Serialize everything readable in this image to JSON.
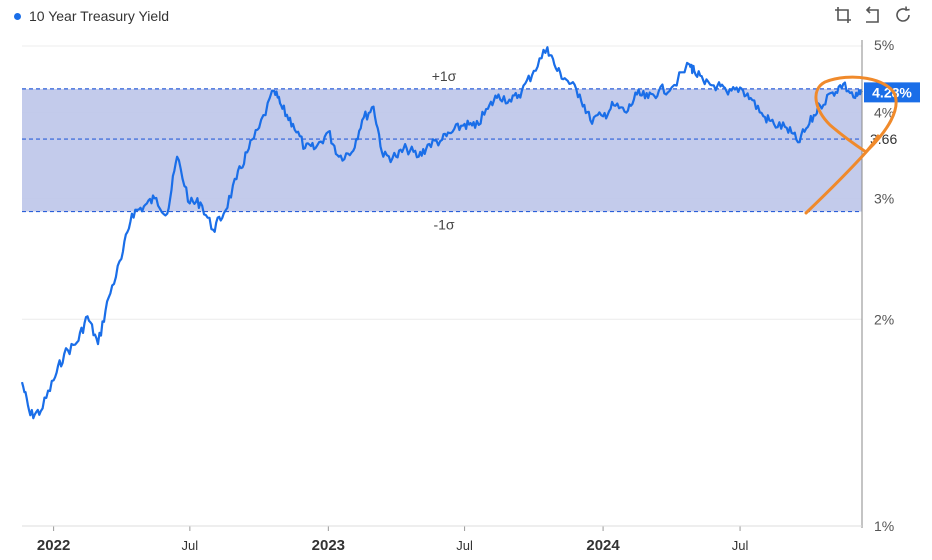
{
  "legend": {
    "label": "10 Year Treasury Yield",
    "color": "#1a6ee8"
  },
  "toolbar": {
    "icons": [
      "crop-icon",
      "undo-icon",
      "refresh-icon"
    ]
  },
  "chart_data": {
    "type": "line",
    "title": "",
    "y_scale": "log",
    "ylim": [
      1,
      5
    ],
    "y_ticks": [
      {
        "value": 5,
        "label": "5%"
      },
      {
        "value": 4,
        "label": "4%"
      },
      {
        "value": 3,
        "label": "3%"
      },
      {
        "value": 2,
        "label": "2%"
      },
      {
        "value": 1,
        "label": "1%"
      }
    ],
    "xlim": [
      "2021-11-20",
      "2024-12-10"
    ],
    "x_ticks": [
      {
        "date": "2022-01-01",
        "label": "2022",
        "bold": true
      },
      {
        "date": "2022-07-01",
        "label": "Jul",
        "bold": false
      },
      {
        "date": "2023-01-01",
        "label": "2023",
        "bold": true
      },
      {
        "date": "2023-07-01",
        "label": "Jul",
        "bold": false
      },
      {
        "date": "2024-01-01",
        "label": "2024",
        "bold": true
      },
      {
        "date": "2024-07-01",
        "label": "Jul",
        "bold": false
      }
    ],
    "band": {
      "upper": 4.33,
      "lower": 2.87,
      "upper_label": "+1σ",
      "lower_label": "-1σ",
      "color": "#c0c8ea"
    },
    "reference_line": {
      "value": 3.66,
      "label": "3.66"
    },
    "last_value_label": "4.28%",
    "annotation_color": "#f08a2b",
    "grid": true,
    "series": [
      {
        "color": "#1a6ee8",
        "x": [
          "2021-11-20",
          "2021-12-01",
          "2021-12-15",
          "2022-01-01",
          "2022-01-15",
          "2022-02-01",
          "2022-02-15",
          "2022-03-01",
          "2022-03-15",
          "2022-04-01",
          "2022-04-15",
          "2022-05-01",
          "2022-05-15",
          "2022-06-01",
          "2022-06-14",
          "2022-07-01",
          "2022-07-15",
          "2022-08-01",
          "2022-08-15",
          "2022-09-01",
          "2022-09-15",
          "2022-10-01",
          "2022-10-21",
          "2022-11-01",
          "2022-11-15",
          "2022-12-01",
          "2022-12-15",
          "2023-01-01",
          "2023-01-15",
          "2023-02-01",
          "2023-02-15",
          "2023-03-02",
          "2023-03-15",
          "2023-04-01",
          "2023-04-15",
          "2023-05-01",
          "2023-05-15",
          "2023-06-01",
          "2023-06-15",
          "2023-07-01",
          "2023-07-15",
          "2023-08-01",
          "2023-08-15",
          "2023-09-01",
          "2023-09-15",
          "2023-10-01",
          "2023-10-19",
          "2023-11-01",
          "2023-11-15",
          "2023-12-01",
          "2023-12-15",
          "2024-01-01",
          "2024-01-15",
          "2024-02-01",
          "2024-02-15",
          "2024-03-01",
          "2024-03-15",
          "2024-04-01",
          "2024-04-25",
          "2024-05-01",
          "2024-05-15",
          "2024-06-01",
          "2024-06-15",
          "2024-07-01",
          "2024-07-15",
          "2024-08-01",
          "2024-08-15",
          "2024-09-01",
          "2024-09-16",
          "2024-10-01",
          "2024-10-15",
          "2024-11-01",
          "2024-11-15",
          "2024-12-01",
          "2024-12-10"
        ],
        "values": [
          1.62,
          1.45,
          1.47,
          1.63,
          1.78,
          1.85,
          2.02,
          1.84,
          2.15,
          2.45,
          2.85,
          2.92,
          3.0,
          2.85,
          3.45,
          2.95,
          2.96,
          2.7,
          2.85,
          3.2,
          3.5,
          3.8,
          4.3,
          4.05,
          3.85,
          3.55,
          3.55,
          3.75,
          3.45,
          3.5,
          3.9,
          4.08,
          3.45,
          3.45,
          3.55,
          3.45,
          3.6,
          3.65,
          3.75,
          3.85,
          3.8,
          4.05,
          4.25,
          4.15,
          4.3,
          4.6,
          4.98,
          4.6,
          4.45,
          4.25,
          3.9,
          3.95,
          4.1,
          4.0,
          4.25,
          4.2,
          4.3,
          4.35,
          4.7,
          4.6,
          4.4,
          4.38,
          4.25,
          4.35,
          4.2,
          3.95,
          3.85,
          3.8,
          3.62,
          3.85,
          4.1,
          4.28,
          4.4,
          4.2,
          4.28
        ]
      }
    ]
  }
}
